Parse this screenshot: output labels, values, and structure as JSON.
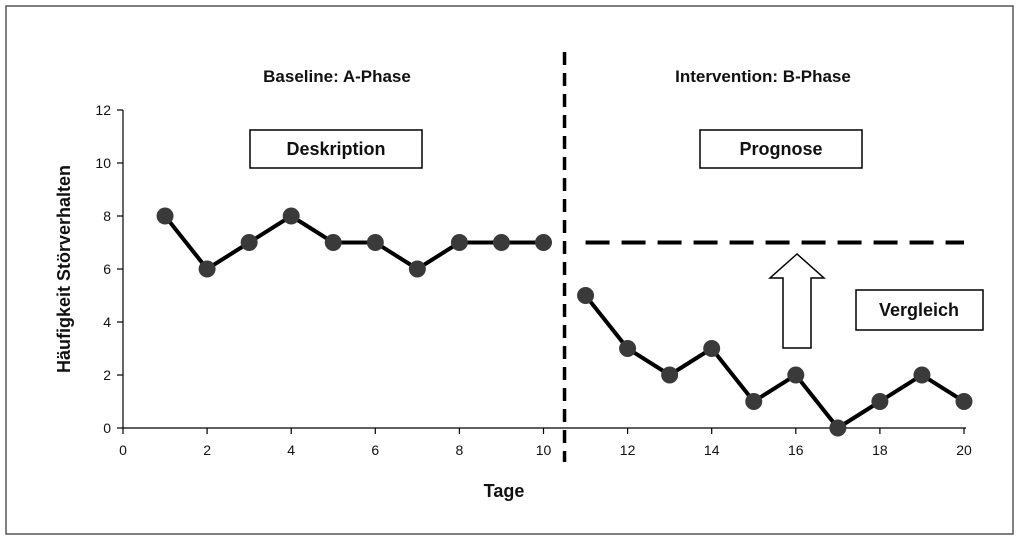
{
  "chart_data": {
    "type": "line",
    "xlabel": "Tage",
    "ylabel": "Häufigkeit Störverhalten",
    "xlim": [
      0,
      20
    ],
    "ylim": [
      0,
      12
    ],
    "x_ticks": [
      "0",
      "2",
      "4",
      "6",
      "8",
      "10",
      "12",
      "14",
      "16",
      "18",
      "20"
    ],
    "y_ticks": [
      "0",
      "2",
      "4",
      "6",
      "8",
      "10",
      "12"
    ],
    "grid": false,
    "phase_divider_x": 10.5,
    "phases": [
      {
        "label": "Baseline: A-Phase",
        "box": "Deskription"
      },
      {
        "label": "Intervention: B-Phase",
        "box": "Prognose"
      }
    ],
    "comparison_box": "Vergleich",
    "series": [
      {
        "x": [
          1,
          2,
          3,
          4,
          5,
          6,
          7,
          8,
          9,
          10
        ],
        "values": [
          8,
          6,
          7,
          8,
          7,
          7,
          6,
          7,
          7,
          7
        ]
      },
      {
        "x": [
          11,
          12,
          13,
          14,
          15,
          16,
          17,
          18,
          19,
          20
        ],
        "values": [
          5,
          3,
          2,
          3,
          1,
          2,
          0,
          1,
          2,
          1
        ]
      }
    ],
    "prognosis_line": {
      "y": 7,
      "x_from": 11,
      "x_to": 20
    },
    "colors": {
      "line": "#000000",
      "marker": "#3a3a3a",
      "frame": "#555555"
    }
  }
}
